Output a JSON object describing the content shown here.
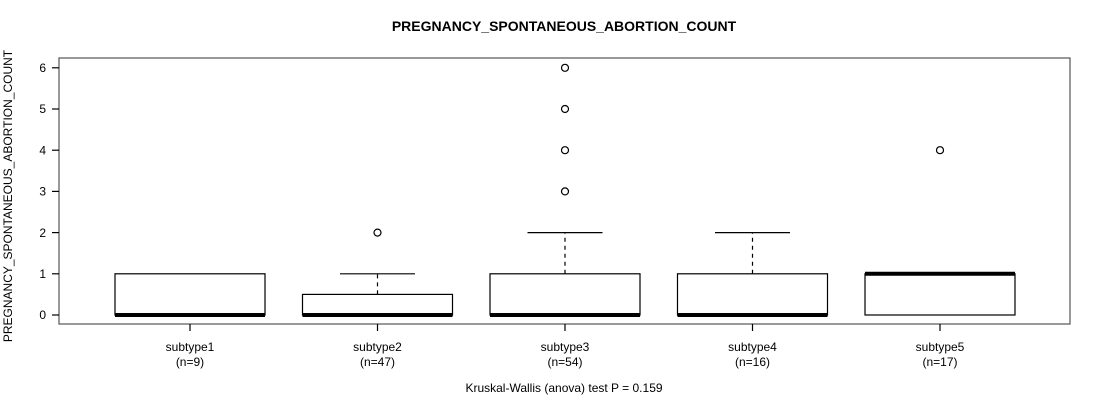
{
  "chart_data": {
    "type": "boxplot",
    "title": "PREGNANCY_SPONTANEOUS_ABORTION_COUNT",
    "ylabel": "PREGNANCY_SPONTANEOUS_ABORTION_COUNT",
    "xlabel": "",
    "caption": "Kruskal-Wallis (anova) test P = 0.159",
    "ylim": [
      0,
      6
    ],
    "yticks": [
      0,
      1,
      2,
      3,
      4,
      5,
      6
    ],
    "grid": false,
    "legend": "none",
    "groups": [
      {
        "label": "subtype1",
        "count_label": "(n=9)",
        "n": 9,
        "whisker_low": 0,
        "q1": 0,
        "median": 0,
        "q3": 1,
        "whisker_high": 1,
        "outliers": []
      },
      {
        "label": "subtype2",
        "count_label": "(n=47)",
        "n": 47,
        "whisker_low": 0,
        "q1": 0,
        "median": 0,
        "q3": 0.5,
        "whisker_high": 1,
        "outliers": [
          2
        ]
      },
      {
        "label": "subtype3",
        "count_label": "(n=54)",
        "n": 54,
        "whisker_low": 0,
        "q1": 0,
        "median": 0,
        "q3": 1,
        "whisker_high": 2,
        "outliers": [
          3,
          4,
          5,
          6
        ]
      },
      {
        "label": "subtype4",
        "count_label": "(n=16)",
        "n": 16,
        "whisker_low": 0,
        "q1": 0,
        "median": 0,
        "q3": 1,
        "whisker_high": 2,
        "outliers": []
      },
      {
        "label": "subtype5",
        "count_label": "(n=17)",
        "n": 17,
        "whisker_low": 0,
        "q1": 0,
        "median": 1,
        "q3": 1,
        "whisker_high": 1,
        "outliers": [
          4
        ]
      }
    ],
    "colors": {
      "line": "#000000",
      "frame": "#555555",
      "box_fill": "#ffffff",
      "background": "#ffffff"
    }
  }
}
